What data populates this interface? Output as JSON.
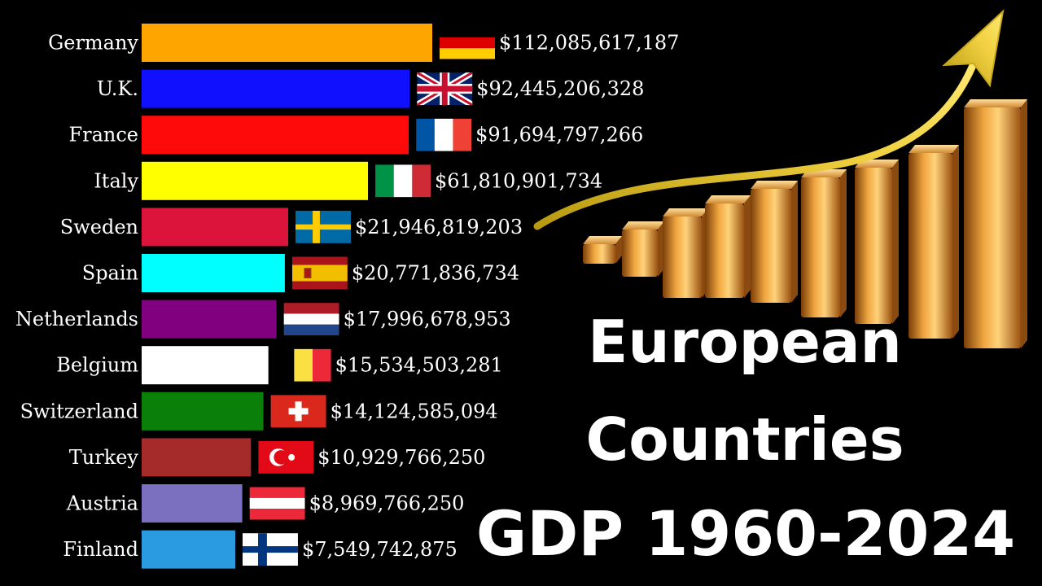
{
  "chart_data": {
    "type": "bar",
    "orientation": "horizontal",
    "categories": [
      "Germany",
      "U.K.",
      "France",
      "Italy",
      "Sweden",
      "Spain",
      "Netherlands",
      "Belgium",
      "Switzerland",
      "Turkey",
      "Austria",
      "Finland"
    ],
    "values": [
      112085617187,
      92445206328,
      91694797266,
      61810901734,
      21946819203,
      20771836734,
      17996678953,
      15534503281,
      14124585094,
      10929766250,
      8969766250,
      7549742875
    ],
    "value_labels": [
      "$112,085,617,187",
      "$92,445,206,328",
      "$91,694,797,266",
      "$61,810,901,734",
      "$21,946,819,203",
      "$20,771,836,734",
      "$17,996,678,953",
      "$15,534,503,281",
      "$14,124,585,094",
      "$10,929,766,250",
      "$8,969,766,250",
      "$7,549,742,875"
    ],
    "colors": [
      "#FFA500",
      "#1010FF",
      "#FF0A0A",
      "#FFFF00",
      "#DC143C",
      "#00FFFF",
      "#800080",
      "#FFFFFF",
      "#0A800A",
      "#A52A2A",
      "#7B70C0",
      "#2A9BE0"
    ],
    "flags": [
      "germany-flag",
      "uk-flag",
      "france-flag",
      "italy-flag",
      "sweden-flag",
      "spain-flag",
      "netherlands-flag",
      "belgium-flag",
      "switzerland-flag",
      "turkey-flag",
      "austria-flag",
      "finland-flag"
    ],
    "grid": false,
    "legend": "none"
  },
  "title": {
    "line1": "European",
    "line2": "Countries",
    "line3": "GDP 1960-2024"
  },
  "decoration": {
    "image": "rising-gold-bars-with-arrow",
    "arrow_color": "#E8C830",
    "bar_color": "#E09A30"
  }
}
